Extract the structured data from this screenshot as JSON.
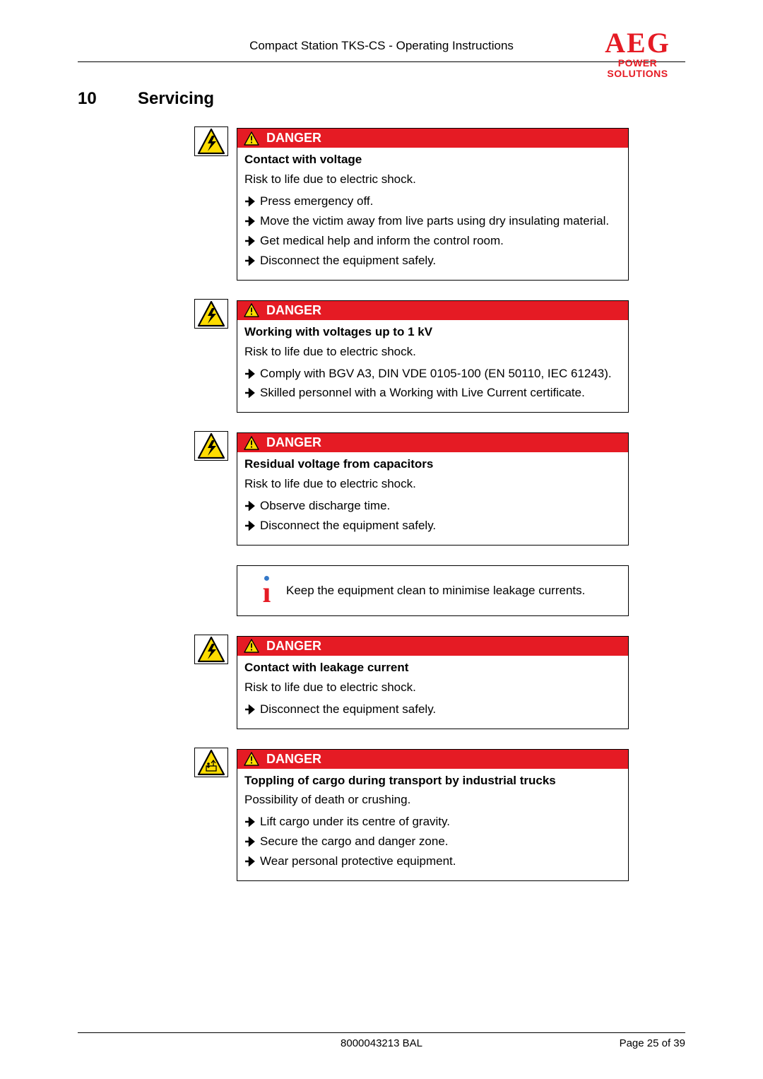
{
  "header": {
    "doc_title": "Compact Station TKS-CS - Operating Instructions",
    "logo_main": "AEG",
    "logo_sub": "POWER SOLUTIONS",
    "logo_color": "#e51b24"
  },
  "section": {
    "number": "10",
    "title": "Servicing"
  },
  "colors": {
    "danger_bg": "#e51b24",
    "danger_text": "#ffffff",
    "warning_triangle_fill": "#fedc00",
    "border": "#000000"
  },
  "danger_label": "DANGER",
  "boxes": [
    {
      "type": "danger",
      "hazard": "electric",
      "subject": "Contact with voltage",
      "risk": "Risk to life due to electric shock.",
      "actions": [
        "Press emergency off.",
        "Move the victim away from live parts using dry insulating material.",
        "Get medical help and inform the control room.",
        "Disconnect the equipment safely."
      ]
    },
    {
      "type": "danger",
      "hazard": "electric",
      "subject": "Working with voltages up to 1 kV",
      "risk": "Risk to life due to electric shock.",
      "actions": [
        "Comply with BGV A3, DIN VDE 0105-100 (EN 50110, IEC 61243).",
        "Skilled personnel with a Working with Live Current certificate."
      ]
    },
    {
      "type": "danger",
      "hazard": "electric",
      "subject": "Residual voltage from capacitors",
      "risk": "Risk to life due to electric shock.",
      "actions": [
        "Observe discharge time.",
        "Disconnect the equipment safely."
      ]
    },
    {
      "type": "info",
      "text": "Keep the equipment clean to minimise leakage currents."
    },
    {
      "type": "danger",
      "hazard": "electric",
      "subject": "Contact with leakage current",
      "risk": "Risk to life due to electric shock.",
      "actions": [
        "Disconnect the equipment safely."
      ]
    },
    {
      "type": "danger",
      "hazard": "crush",
      "subject": "Toppling of cargo during transport by industrial trucks",
      "risk": "Possibility of death or crushing.",
      "actions": [
        "Lift cargo under its centre of gravity.",
        "Secure the cargo and danger zone.",
        "Wear personal protective equipment."
      ]
    }
  ],
  "footer": {
    "left": "",
    "center": "8000043213 BAL",
    "right": "Page 25 of 39"
  }
}
